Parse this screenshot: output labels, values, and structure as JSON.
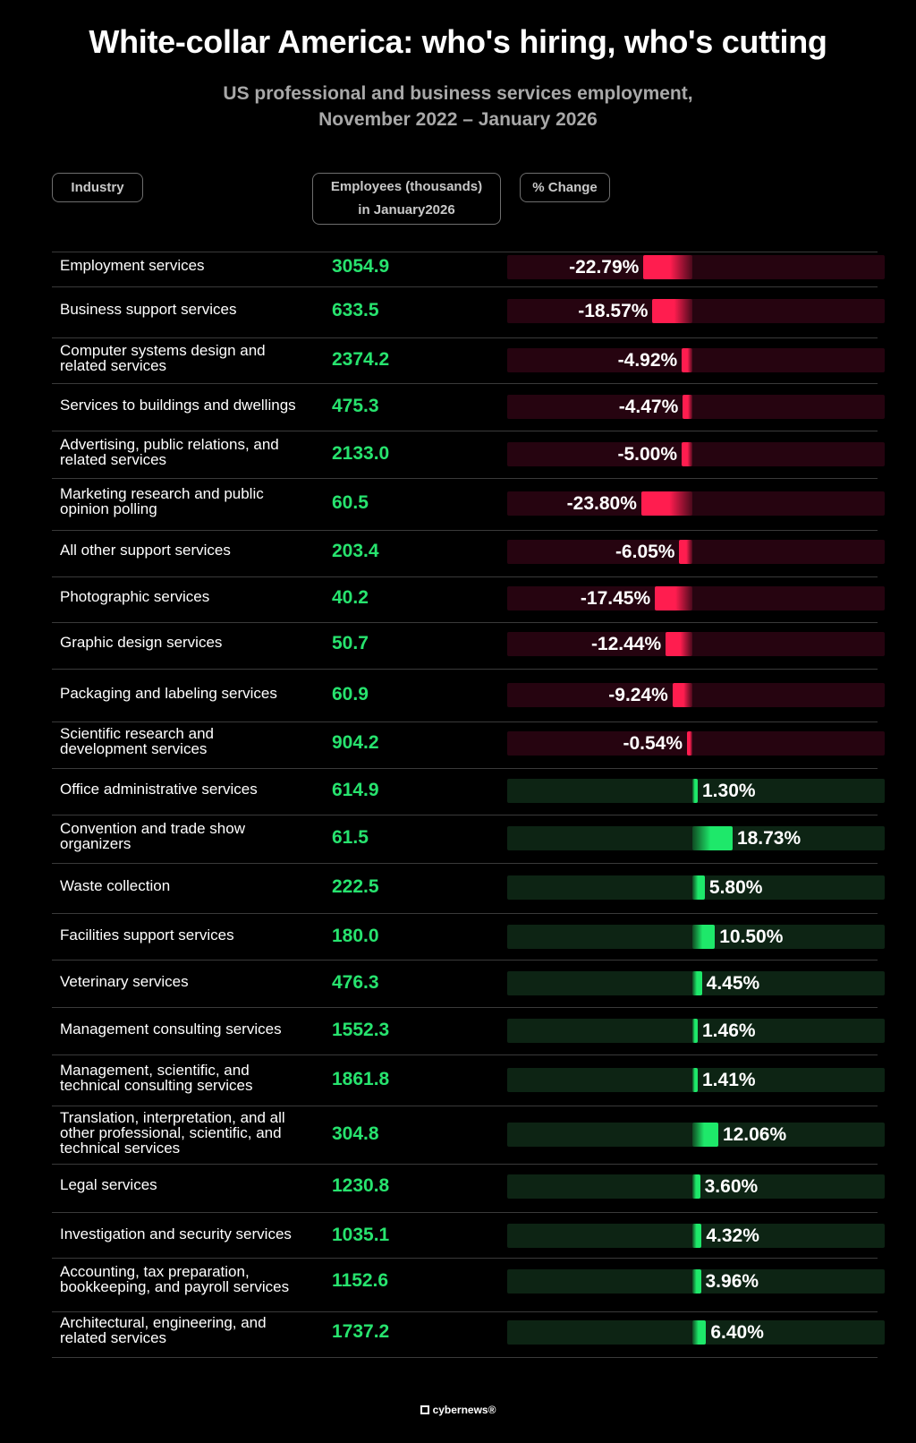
{
  "title": "White-collar America: who's hiring, who's cutting",
  "subtitle_line1": "US professional and business services employment,",
  "subtitle_line2": "November 2022 – January 2026",
  "headers": {
    "industry": "Industry",
    "employees_line1": "Employees (thousands)",
    "employees_line2": "in January2026",
    "change": "% Change"
  },
  "footer": {
    "brand": "cybernews®",
    "logo_icon": "cybernews-logo-icon"
  },
  "colors": {
    "negative": "#ff1d4f",
    "positive": "#1ee86a",
    "employees_text": "#27e36e",
    "background": "#000000"
  },
  "chart_data": {
    "type": "bar",
    "title": "White-collar America: who's hiring, who's cutting",
    "subtitle": "US professional and business services employment, November 2022 – January 2026",
    "rows": [
      {
        "industry": "Employment services",
        "employees": "3054.9",
        "change": -22.79,
        "change_label": "-22.79%"
      },
      {
        "industry": "Business support services",
        "employees": "633.5",
        "change": -18.57,
        "change_label": "-18.57%"
      },
      {
        "industry": "Computer systems design and\nrelated services",
        "employees": "2374.2",
        "change": -4.92,
        "change_label": "-4.92%"
      },
      {
        "industry": "Services to buildings and dwellings",
        "employees": "475.3",
        "change": -4.47,
        "change_label": "-4.47%"
      },
      {
        "industry": "Advertising, public relations, and\nrelated services",
        "employees": "2133.0",
        "change": -5.0,
        "change_label": "-5.00%"
      },
      {
        "industry": "Marketing research and public\nopinion polling",
        "employees": "60.5",
        "change": -23.8,
        "change_label": "-23.80%"
      },
      {
        "industry": "All other support services",
        "employees": "203.4",
        "change": -6.05,
        "change_label": "-6.05%"
      },
      {
        "industry": "Photographic services",
        "employees": "40.2",
        "change": -17.45,
        "change_label": "-17.45%"
      },
      {
        "industry": "Graphic design services",
        "employees": "50.7",
        "change": -12.44,
        "change_label": "-12.44%"
      },
      {
        "industry": "Packaging and labeling services",
        "employees": "60.9",
        "change": -9.24,
        "change_label": "-9.24%"
      },
      {
        "industry": "Scientific research and\ndevelopment services",
        "employees": "904.2",
        "change": -0.54,
        "change_label": "-0.54%"
      },
      {
        "industry": "Office administrative services",
        "employees": "614.9",
        "change": 1.3,
        "change_label": "1.30%"
      },
      {
        "industry": "Convention and trade show\norganizers",
        "employees": "61.5",
        "change": 18.73,
        "change_label": "18.73%"
      },
      {
        "industry": "Waste collection",
        "employees": "222.5",
        "change": 5.8,
        "change_label": "5.80%"
      },
      {
        "industry": "Facilities support services",
        "employees": "180.0",
        "change": 10.5,
        "change_label": "10.50%"
      },
      {
        "industry": "Veterinary services",
        "employees": "476.3",
        "change": 4.45,
        "change_label": "4.45%"
      },
      {
        "industry": "Management consulting services",
        "employees": "1552.3",
        "change": 1.46,
        "change_label": "1.46%"
      },
      {
        "industry": "Management, scientific, and\ntechnical consulting services",
        "employees": "1861.8",
        "change": 1.41,
        "change_label": "1.41%"
      },
      {
        "industry": "Translation, interpretation, and all\nother professional, scientific, and\ntechnical services",
        "employees": "304.8",
        "change": 12.06,
        "change_label": "12.06%"
      },
      {
        "industry": "Legal services",
        "employees": "1230.8",
        "change": 3.6,
        "change_label": "3.60%"
      },
      {
        "industry": "Investigation and security services",
        "employees": "1035.1",
        "change": 4.32,
        "change_label": "4.32%"
      },
      {
        "industry": "Accounting, tax preparation,\nbookkeeping, and payroll services",
        "employees": "1152.6",
        "change": 3.96,
        "change_label": "3.96%"
      },
      {
        "industry": "Architectural, engineering, and\nrelated services",
        "employees": "1737.2",
        "change": 6.4,
        "change_label": "6.40%"
      }
    ]
  }
}
